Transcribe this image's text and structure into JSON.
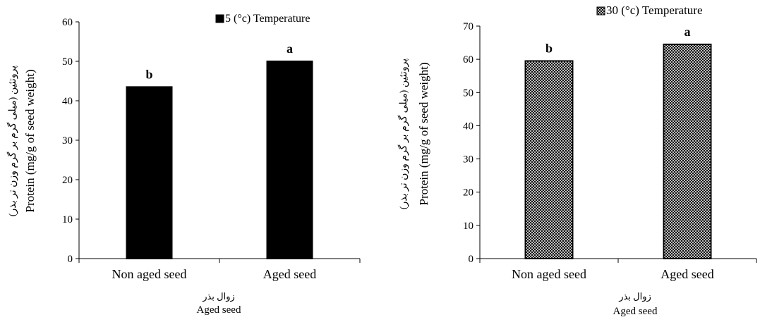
{
  "chart_data": [
    {
      "type": "bar",
      "legend": "5 (°c) Temperature",
      "categories": [
        "Non aged seed",
        "Aged seed"
      ],
      "values": [
        43.5,
        50
      ],
      "bar_labels": [
        "b",
        "a"
      ],
      "ylabel_fa": "پروتئین (میلی گرم بر گرم وزن تر بذر)",
      "ylabel": "Protein (mg/g of seed weight)",
      "xlabel_fa": "زوال بذر",
      "xlabel": "Aged seed",
      "ylim": [
        0,
        60
      ],
      "yticks": [
        0,
        10,
        20,
        30,
        40,
        50,
        60
      ],
      "fill": "solid",
      "color": "#000000",
      "legend_position": "top-right"
    },
    {
      "type": "bar",
      "legend": "30 (°c) Temperature",
      "categories": [
        "Non aged seed",
        "Aged seed"
      ],
      "values": [
        59.5,
        64.5
      ],
      "bar_labels": [
        "b",
        "a"
      ],
      "ylabel_fa": "پروتئین (میلی گرم بر گرم وزن تر بذر)",
      "ylabel": "Protein (mg/g of seed weight)",
      "xlabel_fa": "زوال بذر",
      "xlabel": "Aged seed",
      "ylim": [
        0,
        70
      ],
      "yticks": [
        0,
        10,
        20,
        30,
        40,
        50,
        60,
        70
      ],
      "fill": "crosshatch",
      "color": "#000000",
      "legend_position": "top-right"
    }
  ]
}
